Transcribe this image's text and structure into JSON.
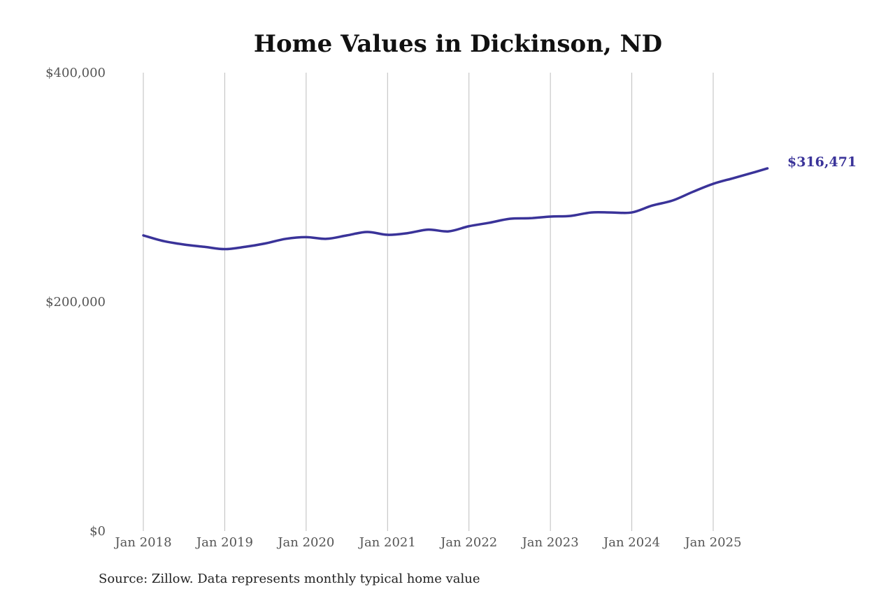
{
  "chart_data": {
    "type": "line",
    "title": "Home Values in Dickinson, ND",
    "source": "Source: Zillow. Data represents monthly typical home value",
    "xlabel": "",
    "ylabel": "",
    "ylim": [
      0,
      400000
    ],
    "y_ticks": [
      0,
      200000,
      400000
    ],
    "y_tick_labels": [
      "$0",
      "$200,000",
      "$400,000"
    ],
    "x_ticks": [
      "2018-01",
      "2019-01",
      "2020-01",
      "2021-01",
      "2022-01",
      "2023-01",
      "2024-01",
      "2025-01"
    ],
    "x_tick_labels": [
      "Jan 2018",
      "Jan 2019",
      "Jan 2020",
      "Jan 2021",
      "Jan 2022",
      "Jan 2023",
      "Jan 2024",
      "Jan 2025"
    ],
    "grid": "vertical lines at x ticks",
    "line_color": "#3a3399",
    "end_label": "$316,471",
    "series": [
      {
        "x": [
          "2018-01",
          "2018-04",
          "2018-07",
          "2018-10",
          "2019-01",
          "2019-04",
          "2019-07",
          "2019-10",
          "2020-01",
          "2020-04",
          "2020-07",
          "2020-10",
          "2021-01",
          "2021-04",
          "2021-07",
          "2021-10",
          "2022-01",
          "2022-04",
          "2022-07",
          "2022-10",
          "2023-01",
          "2023-04",
          "2023-07",
          "2023-10",
          "2024-01",
          "2024-04",
          "2024-07",
          "2024-10",
          "2025-01",
          "2025-04",
          "2025-07",
          "2025-09"
        ],
        "values": [
          258000,
          253000,
          250000,
          248000,
          246000,
          248000,
          251000,
          255000,
          256500,
          255000,
          258000,
          261000,
          258500,
          260000,
          263000,
          261500,
          266000,
          269000,
          272500,
          273000,
          274400,
          275000,
          278000,
          278000,
          278000,
          284000,
          288400,
          296000,
          303000,
          308000,
          313000,
          316471
        ]
      }
    ]
  }
}
